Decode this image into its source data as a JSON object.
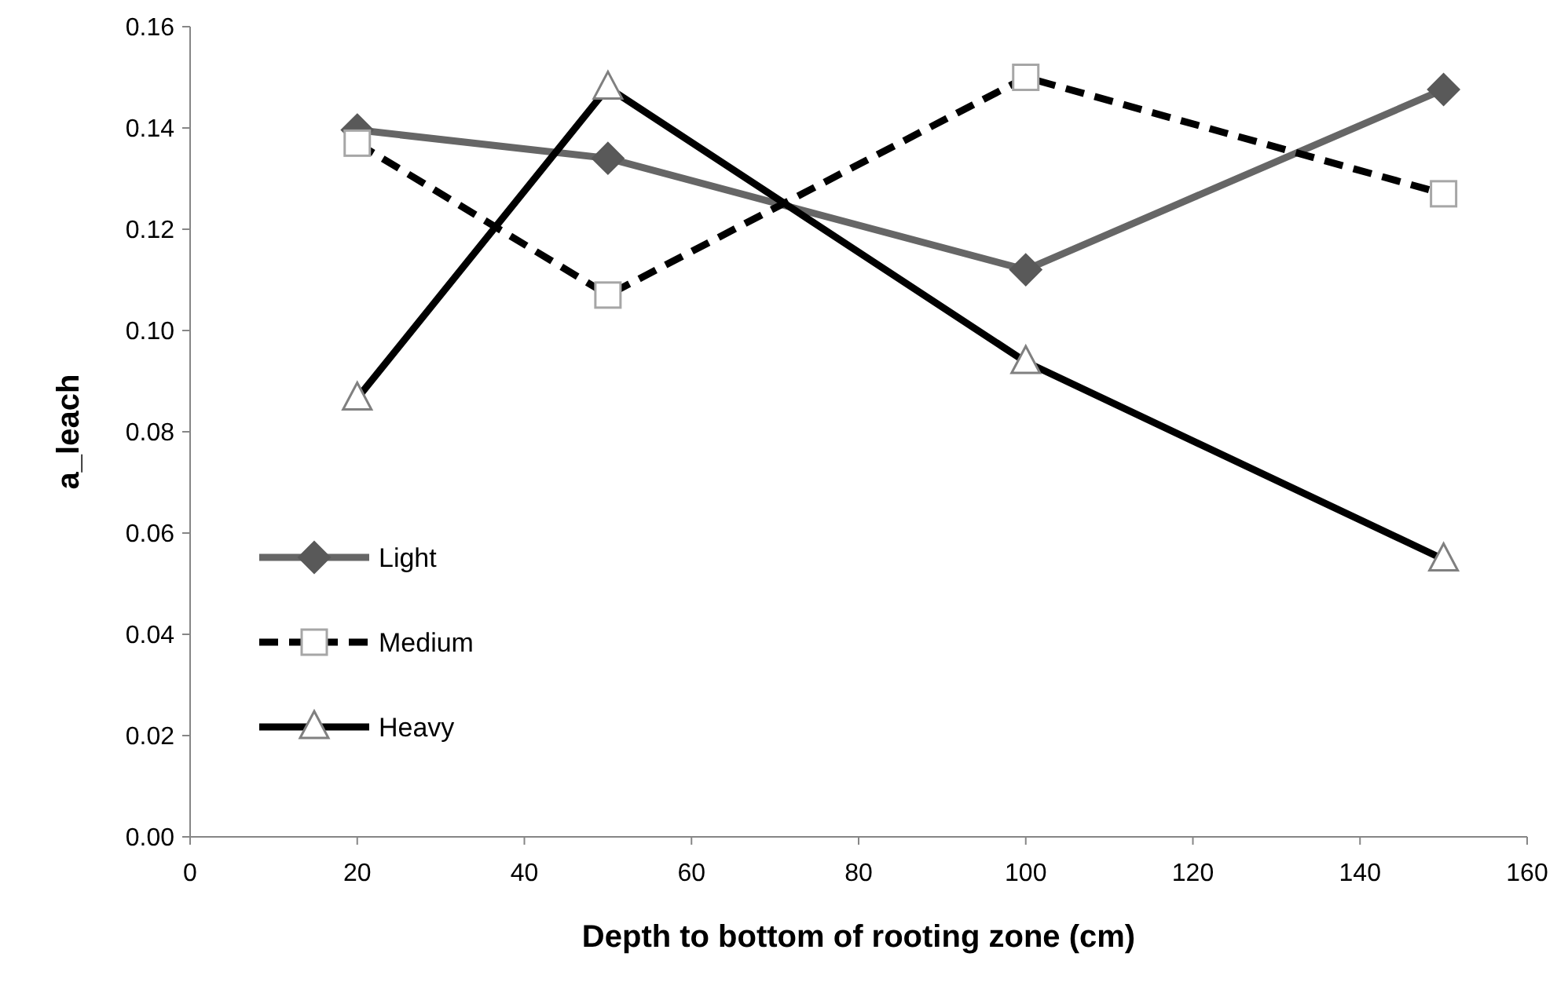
{
  "chart_data": {
    "type": "line",
    "xlabel": "Depth to bottom of rooting zone (cm)",
    "ylabel": "a_leach",
    "x": [
      20,
      50,
      100,
      150
    ],
    "xlim": [
      0,
      160
    ],
    "xticks": [
      0,
      20,
      40,
      60,
      80,
      100,
      120,
      140,
      160
    ],
    "ylim": [
      0,
      0.16
    ],
    "yticks": [
      {
        "value": 0,
        "label": "0.00"
      },
      {
        "value": 0.02,
        "label": "0.02"
      },
      {
        "value": 0.04,
        "label": "0.04"
      },
      {
        "value": 0.06,
        "label": "0.06"
      },
      {
        "value": 0.08,
        "label": "0.08"
      },
      {
        "value": 0.1,
        "label": "0.10"
      },
      {
        "value": 0.12,
        "label": "0.12"
      },
      {
        "value": 0.14,
        "label": "0.14"
      },
      {
        "value": 0.16,
        "label": "0.16"
      }
    ],
    "grid": false,
    "legend": "bottom left",
    "series": [
      {
        "name": "Light",
        "color": "#666666",
        "marker": "diamond",
        "line_style": "solid",
        "values": [
          0.1396,
          0.134,
          0.112,
          0.1476
        ]
      },
      {
        "name": "Medium",
        "color": "#000000",
        "marker": "square",
        "line_style": "dashed",
        "values": [
          0.137,
          0.107,
          0.15,
          0.127
        ]
      },
      {
        "name": "Heavy",
        "color": "#000000",
        "marker": "triangle",
        "line_style": "solid",
        "values": [
          0.0866,
          0.148,
          0.0938,
          0.0548
        ]
      }
    ]
  }
}
